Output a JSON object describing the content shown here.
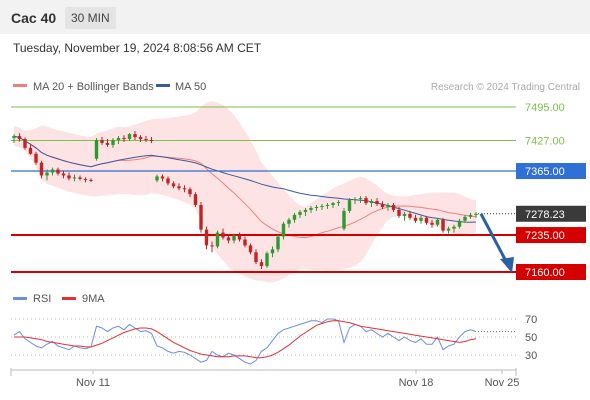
{
  "header": {
    "title": "Cac 40",
    "timeframe": "30 MIN"
  },
  "date_text": "Tuesday, November 19, 2024 8:08:56 AM CET",
  "legend": {
    "ma20": "MA 20 + Bollinger Bands",
    "ma50": "MA 50",
    "credit": "Research © 2024 Trading Central"
  },
  "rsi_legend": {
    "rsi": "RSI",
    "ma": "9MA"
  },
  "colors": {
    "up": "#2e9a2e",
    "down": "#c02424",
    "ma20": "#f08080",
    "ma50": "#3a5aa0",
    "band": "#fddcdc",
    "green_level": "#7cc24a",
    "blue_level": "#2f6fd6",
    "red_level": "#d40000",
    "price_tag": "#3a3a3a",
    "arrow": "#2d5fa5",
    "rsi": "#6a8ee0",
    "rsi_ma": "#e53030"
  },
  "chart_data": {
    "type": "candlestick",
    "ylim": [
      7145,
      7510
    ],
    "x_ticks": [
      "Nov 11",
      "Nov 18",
      "Nov 25"
    ],
    "levels": [
      {
        "value": 7495.0,
        "label": "7495.00",
        "kind": "resistance-green"
      },
      {
        "value": 7427.0,
        "label": "7427.00",
        "kind": "resistance-green"
      },
      {
        "value": 7365.0,
        "label": "7365.00",
        "kind": "pivot-blue"
      },
      {
        "value": 7278.23,
        "label": "7278.23",
        "kind": "last-price"
      },
      {
        "value": 7235.0,
        "label": "7235.00",
        "kind": "support-red"
      },
      {
        "value": 7160.0,
        "label": "7160.00",
        "kind": "support-red"
      }
    ],
    "forecast": {
      "from": 7278,
      "to": 7162
    },
    "candles": [
      {
        "o": 7432,
        "h": 7440,
        "l": 7422,
        "c": 7436
      },
      {
        "o": 7436,
        "h": 7442,
        "l": 7425,
        "c": 7430
      },
      {
        "o": 7430,
        "h": 7433,
        "l": 7408,
        "c": 7412
      },
      {
        "o": 7412,
        "h": 7418,
        "l": 7398,
        "c": 7400
      },
      {
        "o": 7400,
        "h": 7404,
        "l": 7378,
        "c": 7382
      },
      {
        "o": 7382,
        "h": 7386,
        "l": 7350,
        "c": 7356
      },
      {
        "o": 7356,
        "h": 7368,
        "l": 7346,
        "c": 7362
      },
      {
        "o": 7362,
        "h": 7372,
        "l": 7356,
        "c": 7368
      },
      {
        "o": 7368,
        "h": 7372,
        "l": 7356,
        "c": 7360
      },
      {
        "o": 7360,
        "h": 7366,
        "l": 7350,
        "c": 7356
      },
      {
        "o": 7356,
        "h": 7362,
        "l": 7346,
        "c": 7350
      },
      {
        "o": 7350,
        "h": 7358,
        "l": 7344,
        "c": 7352
      },
      {
        "o": 7352,
        "h": 7356,
        "l": 7346,
        "c": 7349
      },
      {
        "o": 7349,
        "h": 7352,
        "l": 7342,
        "c": 7347
      },
      {
        "o": 7347,
        "h": 7350,
        "l": 7343,
        "c": 7346
      },
      {
        "o": 7390,
        "h": 7432,
        "l": 7386,
        "c": 7428
      },
      {
        "o": 7428,
        "h": 7434,
        "l": 7418,
        "c": 7422
      },
      {
        "o": 7422,
        "h": 7430,
        "l": 7414,
        "c": 7418
      },
      {
        "o": 7418,
        "h": 7432,
        "l": 7412,
        "c": 7428
      },
      {
        "o": 7428,
        "h": 7436,
        "l": 7420,
        "c": 7432
      },
      {
        "o": 7432,
        "h": 7438,
        "l": 7424,
        "c": 7430
      },
      {
        "o": 7430,
        "h": 7442,
        "l": 7426,
        "c": 7440
      },
      {
        "o": 7440,
        "h": 7446,
        "l": 7428,
        "c": 7434
      },
      {
        "o": 7434,
        "h": 7438,
        "l": 7424,
        "c": 7430
      },
      {
        "o": 7430,
        "h": 7436,
        "l": 7424,
        "c": 7428
      },
      {
        "o": 7428,
        "h": 7434,
        "l": 7422,
        "c": 7426
      },
      {
        "o": 7346,
        "h": 7358,
        "l": 7342,
        "c": 7354
      },
      {
        "o": 7354,
        "h": 7358,
        "l": 7344,
        "c": 7350
      },
      {
        "o": 7350,
        "h": 7354,
        "l": 7336,
        "c": 7340
      },
      {
        "o": 7340,
        "h": 7344,
        "l": 7330,
        "c": 7334
      },
      {
        "o": 7334,
        "h": 7340,
        "l": 7326,
        "c": 7330
      },
      {
        "o": 7330,
        "h": 7336,
        "l": 7322,
        "c": 7328
      },
      {
        "o": 7328,
        "h": 7332,
        "l": 7312,
        "c": 7318
      },
      {
        "o": 7318,
        "h": 7322,
        "l": 7292,
        "c": 7296
      },
      {
        "o": 7296,
        "h": 7302,
        "l": 7240,
        "c": 7246
      },
      {
        "o": 7246,
        "h": 7252,
        "l": 7206,
        "c": 7214
      },
      {
        "o": 7214,
        "h": 7222,
        "l": 7200,
        "c": 7212
      },
      {
        "o": 7212,
        "h": 7244,
        "l": 7208,
        "c": 7240
      },
      {
        "o": 7240,
        "h": 7248,
        "l": 7226,
        "c": 7230
      },
      {
        "o": 7230,
        "h": 7236,
        "l": 7218,
        "c": 7224
      },
      {
        "o": 7224,
        "h": 7238,
        "l": 7218,
        "c": 7234
      },
      {
        "o": 7234,
        "h": 7240,
        "l": 7222,
        "c": 7226
      },
      {
        "o": 7226,
        "h": 7232,
        "l": 7210,
        "c": 7214
      },
      {
        "o": 7214,
        "h": 7218,
        "l": 7196,
        "c": 7200
      },
      {
        "o": 7200,
        "h": 7206,
        "l": 7176,
        "c": 7180
      },
      {
        "o": 7180,
        "h": 7186,
        "l": 7166,
        "c": 7172
      },
      {
        "o": 7172,
        "h": 7202,
        "l": 7168,
        "c": 7198
      },
      {
        "o": 7198,
        "h": 7212,
        "l": 7190,
        "c": 7206
      },
      {
        "o": 7206,
        "h": 7236,
        "l": 7200,
        "c": 7232
      },
      {
        "o": 7232,
        "h": 7262,
        "l": 7226,
        "c": 7258
      },
      {
        "o": 7258,
        "h": 7270,
        "l": 7250,
        "c": 7266
      },
      {
        "o": 7266,
        "h": 7280,
        "l": 7260,
        "c": 7276
      },
      {
        "o": 7276,
        "h": 7286,
        "l": 7270,
        "c": 7282
      },
      {
        "o": 7282,
        "h": 7290,
        "l": 7274,
        "c": 7286
      },
      {
        "o": 7286,
        "h": 7294,
        "l": 7280,
        "c": 7290
      },
      {
        "o": 7290,
        "h": 7296,
        "l": 7284,
        "c": 7292
      },
      {
        "o": 7292,
        "h": 7298,
        "l": 7286,
        "c": 7294
      },
      {
        "o": 7294,
        "h": 7300,
        "l": 7288,
        "c": 7296
      },
      {
        "o": 7296,
        "h": 7302,
        "l": 7290,
        "c": 7300
      },
      {
        "o": 7300,
        "h": 7306,
        "l": 7294,
        "c": 7302
      },
      {
        "o": 7248,
        "h": 7290,
        "l": 7244,
        "c": 7284
      },
      {
        "o": 7284,
        "h": 7310,
        "l": 7280,
        "c": 7306
      },
      {
        "o": 7306,
        "h": 7312,
        "l": 7298,
        "c": 7308
      },
      {
        "o": 7308,
        "h": 7314,
        "l": 7300,
        "c": 7310
      },
      {
        "o": 7310,
        "h": 7314,
        "l": 7296,
        "c": 7300
      },
      {
        "o": 7300,
        "h": 7308,
        "l": 7292,
        "c": 7304
      },
      {
        "o": 7304,
        "h": 7310,
        "l": 7294,
        "c": 7298
      },
      {
        "o": 7298,
        "h": 7304,
        "l": 7288,
        "c": 7292
      },
      {
        "o": 7292,
        "h": 7300,
        "l": 7284,
        "c": 7296
      },
      {
        "o": 7296,
        "h": 7300,
        "l": 7282,
        "c": 7286
      },
      {
        "o": 7286,
        "h": 7292,
        "l": 7270,
        "c": 7274
      },
      {
        "o": 7274,
        "h": 7282,
        "l": 7264,
        "c": 7278
      },
      {
        "o": 7278,
        "h": 7284,
        "l": 7266,
        "c": 7270
      },
      {
        "o": 7270,
        "h": 7276,
        "l": 7260,
        "c": 7264
      },
      {
        "o": 7264,
        "h": 7274,
        "l": 7258,
        "c": 7270
      },
      {
        "o": 7270,
        "h": 7274,
        "l": 7256,
        "c": 7260
      },
      {
        "o": 7260,
        "h": 7266,
        "l": 7250,
        "c": 7256
      },
      {
        "o": 7256,
        "h": 7270,
        "l": 7252,
        "c": 7266
      },
      {
        "o": 7266,
        "h": 7270,
        "l": 7240,
        "c": 7244
      },
      {
        "o": 7244,
        "h": 7252,
        "l": 7238,
        "c": 7248
      },
      {
        "o": 7248,
        "h": 7256,
        "l": 7240,
        "c": 7252
      },
      {
        "o": 7252,
        "h": 7268,
        "l": 7248,
        "c": 7264
      },
      {
        "o": 7264,
        "h": 7276,
        "l": 7260,
        "c": 7272
      },
      {
        "o": 7272,
        "h": 7280,
        "l": 7268,
        "c": 7276
      },
      {
        "o": 7276,
        "h": 7282,
        "l": 7270,
        "c": 7278
      }
    ]
  },
  "rsi_data": {
    "ylim": [
      20,
      80
    ],
    "ticks": [
      "70",
      "50",
      "30"
    ],
    "rsi": [
      52,
      56,
      48,
      44,
      40,
      38,
      42,
      45,
      40,
      38,
      36,
      40,
      38,
      37,
      39,
      62,
      60,
      56,
      60,
      62,
      58,
      64,
      60,
      56,
      57,
      54,
      40,
      38,
      34,
      32,
      34,
      33,
      30,
      26,
      22,
      24,
      34,
      30,
      28,
      32,
      30,
      26,
      22,
      20,
      24,
      34,
      38,
      46,
      54,
      58,
      60,
      62,
      64,
      66,
      68,
      68,
      66,
      70,
      70,
      68,
      44,
      60,
      64,
      62,
      56,
      58,
      54,
      50,
      54,
      50,
      46,
      50,
      46,
      44,
      48,
      42,
      42,
      50,
      36,
      40,
      42,
      50,
      56,
      58,
      56
    ],
    "ma9": [
      50,
      50,
      50,
      49,
      48,
      47,
      45,
      44,
      43,
      42,
      41,
      40,
      40,
      39,
      39,
      41,
      43,
      46,
      49,
      52,
      55,
      57,
      59,
      60,
      60,
      59,
      56,
      52,
      48,
      44,
      41,
      38,
      35,
      33,
      31,
      30,
      29,
      28,
      28,
      28,
      29,
      29,
      29,
      28,
      27,
      27,
      28,
      30,
      33,
      37,
      41,
      46,
      51,
      55,
      59,
      63,
      65,
      67,
      68,
      68,
      67,
      66,
      64,
      62,
      61,
      60,
      59,
      58,
      57,
      56,
      55,
      54,
      53,
      52,
      51,
      50,
      49,
      48,
      47,
      46,
      45,
      44,
      45,
      47,
      48
    ]
  }
}
